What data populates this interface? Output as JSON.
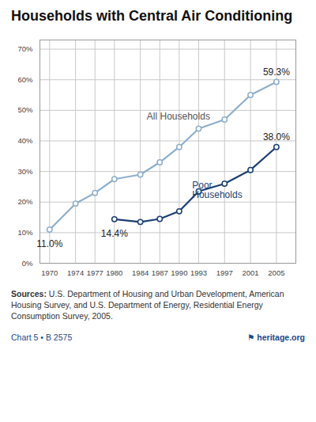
{
  "chart_data": {
    "type": "line",
    "title": "Households with Central Air Conditioning",
    "x": [
      1970,
      1974,
      1977,
      1980,
      1984,
      1987,
      1990,
      1993,
      1997,
      2001,
      2005
    ],
    "series": [
      {
        "name": "All Households",
        "color": "#8eaecb",
        "marker": "circle",
        "line_style": "solid",
        "values": [
          11.0,
          19.5,
          23.0,
          27.5,
          29.0,
          33.0,
          38.0,
          44.0,
          47.0,
          55.0,
          59.3
        ]
      },
      {
        "name": "Poor Households",
        "color": "#1b3f72",
        "marker": "circle",
        "line_style": "solid",
        "values": [
          null,
          null,
          null,
          14.4,
          13.5,
          14.5,
          17.0,
          23.5,
          26.0,
          30.5,
          38.0
        ]
      }
    ],
    "xlim": [
      1968.5,
      2008
    ],
    "xticks": [
      1970,
      1974,
      1977,
      1980,
      1984,
      1987,
      1990,
      1993,
      1997,
      2001,
      2005
    ],
    "ylim": [
      0,
      73
    ],
    "yticks": [
      {
        "value": 0,
        "label": "0%"
      },
      {
        "value": 10,
        "label": "10%"
      },
      {
        "value": 20,
        "label": "20%"
      },
      {
        "value": 30,
        "label": "30%"
      },
      {
        "value": 40,
        "label": "40%"
      },
      {
        "value": 50,
        "label": "50%"
      },
      {
        "value": 60,
        "label": "60%"
      },
      {
        "value": 70,
        "label": "70%"
      }
    ],
    "grid": true,
    "annotations": [
      {
        "text": "11.0%",
        "x": 1970,
        "y": 7.5,
        "anchor": "top"
      },
      {
        "text": "59.3%",
        "x": 2005,
        "y": 61.5,
        "anchor": "bottom"
      },
      {
        "text": "14.4%",
        "x": 1980,
        "y": 10.8,
        "anchor": "top"
      },
      {
        "text": "38.0%",
        "x": 2005,
        "y": 40.2,
        "anchor": "bottom"
      },
      {
        "text": "All Households",
        "x": 1985,
        "y": 48.0,
        "anchor": "left"
      },
      {
        "text": "Poor\nHouseholds",
        "x": 1992,
        "y": 24.0,
        "anchor": "left",
        "color": "#1b3f72"
      }
    ],
    "source_label": "Sources:",
    "source": "U.S. Department of Housing and Urban Development, American Housing Survey, and U.S. Department of Energy, Residential Energy Consumption Survey, 2005.",
    "footer": "Chart 5 • B 2575",
    "footer_mark": "⚑",
    "footer_right": "heritage.org"
  }
}
